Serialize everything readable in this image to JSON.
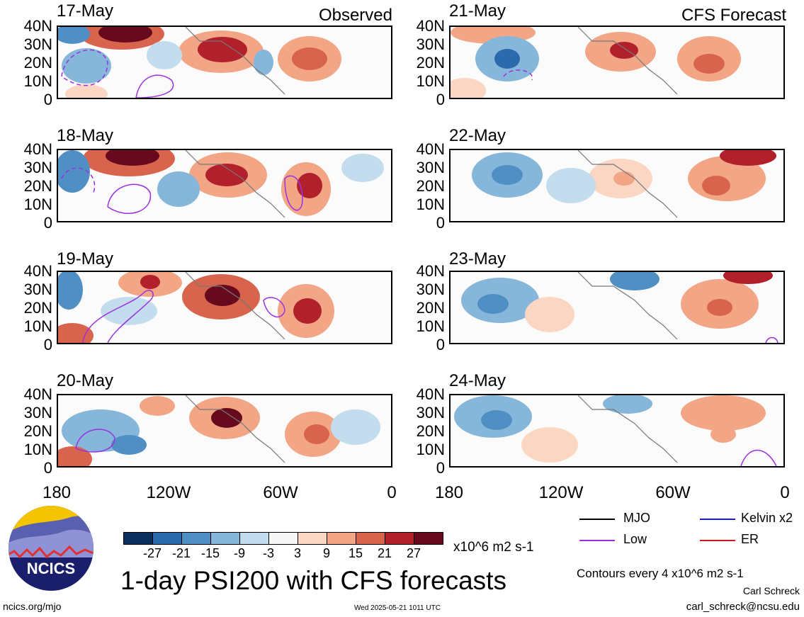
{
  "headers": {
    "observed": "Observed",
    "forecast": "CFS Forecast"
  },
  "panels": {
    "observed": [
      "17-May",
      "18-May",
      "19-May",
      "20-May"
    ],
    "forecast": [
      "21-May",
      "22-May",
      "23-May",
      "24-May"
    ]
  },
  "axes": {
    "lat_labels": [
      "40N",
      "30N",
      "20N",
      "10N",
      "0"
    ],
    "lon_labels": [
      "180",
      "120W",
      "60W",
      "0"
    ]
  },
  "colorbar": {
    "ticks": [
      "-27",
      "-21",
      "-15",
      "-9",
      "-3",
      "3",
      "9",
      "15",
      "21",
      "27"
    ],
    "units": "x10^6 m2 s-1",
    "colors": [
      "#0b2f5c",
      "#2b6aad",
      "#4f8fc4",
      "#86b6da",
      "#c3dcee",
      "#f7f7f7",
      "#fbd6c3",
      "#f2a685",
      "#d9644d",
      "#b2202b",
      "#680a1e"
    ]
  },
  "legend": {
    "items": [
      {
        "label": "MJO",
        "color": "#000000"
      },
      {
        "label": "Kelvin x2",
        "color": "#1a1ab4"
      },
      {
        "label": "Low",
        "color": "#9b30e0"
      },
      {
        "label": "ER",
        "color": "#d01818"
      }
    ],
    "contours": "Contours every 4 x10^6 m2 s-1",
    "author": "Carl Schreck",
    "email": "carl_schreck@ncsu.edu"
  },
  "title": "1-day PSI200 with CFS forecasts",
  "logo": {
    "text": "NCICS"
  },
  "footer": {
    "url": "ncics.org/mjo",
    "timestamp": "Wed 2025-05-21 1011 UTC"
  }
}
